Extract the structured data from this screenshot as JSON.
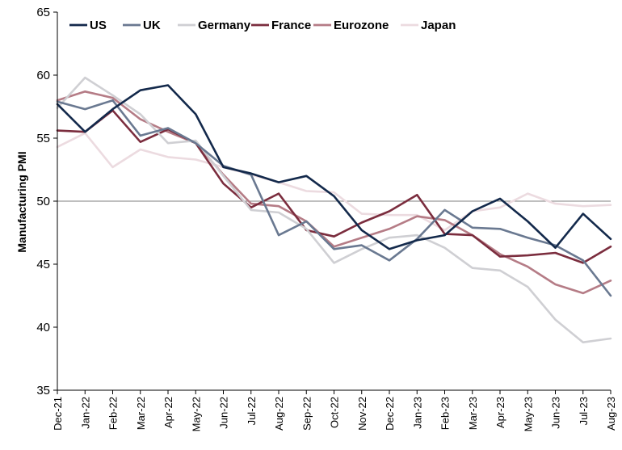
{
  "chart_data": {
    "type": "line",
    "title": "",
    "xlabel": "",
    "ylabel": "Manufacturing PMI",
    "ylim": [
      35,
      65
    ],
    "yticks": [
      35,
      40,
      45,
      50,
      55,
      60,
      65
    ],
    "reference_line": 50,
    "grid": false,
    "legend_position": "top",
    "categories": [
      "Dec-21",
      "Jan-22",
      "Feb-22",
      "Mar-22",
      "Apr-22",
      "May-22",
      "Jun-22",
      "Jul-22",
      "Aug-22",
      "Sep-22",
      "Oct-22",
      "Nov-22",
      "Dec-22",
      "Jan-23",
      "Feb-23",
      "Mar-23",
      "Apr-23",
      "May-23",
      "Jun-23",
      "Jul-23",
      "Aug-23"
    ],
    "series": [
      {
        "name": "US",
        "color": "#13294b",
        "values": [
          57.7,
          55.5,
          57.3,
          58.8,
          59.2,
          56.9,
          52.7,
          52.2,
          51.5,
          52.0,
          50.4,
          47.7,
          46.2,
          46.9,
          47.3,
          49.2,
          50.2,
          48.4,
          46.3,
          49.0,
          47.0
        ]
      },
      {
        "name": "UK",
        "color": "#6a7991",
        "values": [
          57.9,
          57.3,
          58.0,
          55.2,
          55.8,
          54.6,
          52.8,
          52.1,
          47.3,
          48.4,
          46.2,
          46.5,
          45.3,
          47.0,
          49.3,
          47.9,
          47.8,
          47.1,
          46.5,
          45.3,
          42.5
        ]
      },
      {
        "name": "Germany",
        "color": "#cfcfd3",
        "values": [
          57.4,
          59.8,
          58.4,
          56.9,
          54.6,
          54.8,
          52.0,
          49.3,
          49.1,
          47.8,
          45.1,
          46.2,
          47.1,
          47.3,
          46.3,
          44.7,
          44.5,
          43.2,
          40.6,
          38.8,
          39.1
        ]
      },
      {
        "name": "France",
        "color": "#7b2d3e",
        "values": [
          55.6,
          55.5,
          57.2,
          54.7,
          55.7,
          54.6,
          51.4,
          49.5,
          50.6,
          47.7,
          47.2,
          48.3,
          49.2,
          50.5,
          47.4,
          47.3,
          45.6,
          45.7,
          45.9,
          45.1,
          46.4
        ]
      },
      {
        "name": "Eurozone",
        "color": "#b57c86",
        "values": [
          58.0,
          58.7,
          58.2,
          56.5,
          55.5,
          54.6,
          52.1,
          49.8,
          49.6,
          48.4,
          46.4,
          47.1,
          47.8,
          48.8,
          48.5,
          47.3,
          45.8,
          44.8,
          43.4,
          42.7,
          43.7
        ]
      },
      {
        "name": "Japan",
        "color": "#ecdbe0",
        "values": [
          54.3,
          55.4,
          52.7,
          54.1,
          53.5,
          53.3,
          52.7,
          52.1,
          51.5,
          50.8,
          50.7,
          49.0,
          48.9,
          48.9,
          47.7,
          49.2,
          49.5,
          50.6,
          49.8,
          49.6,
          49.7
        ]
      }
    ]
  }
}
